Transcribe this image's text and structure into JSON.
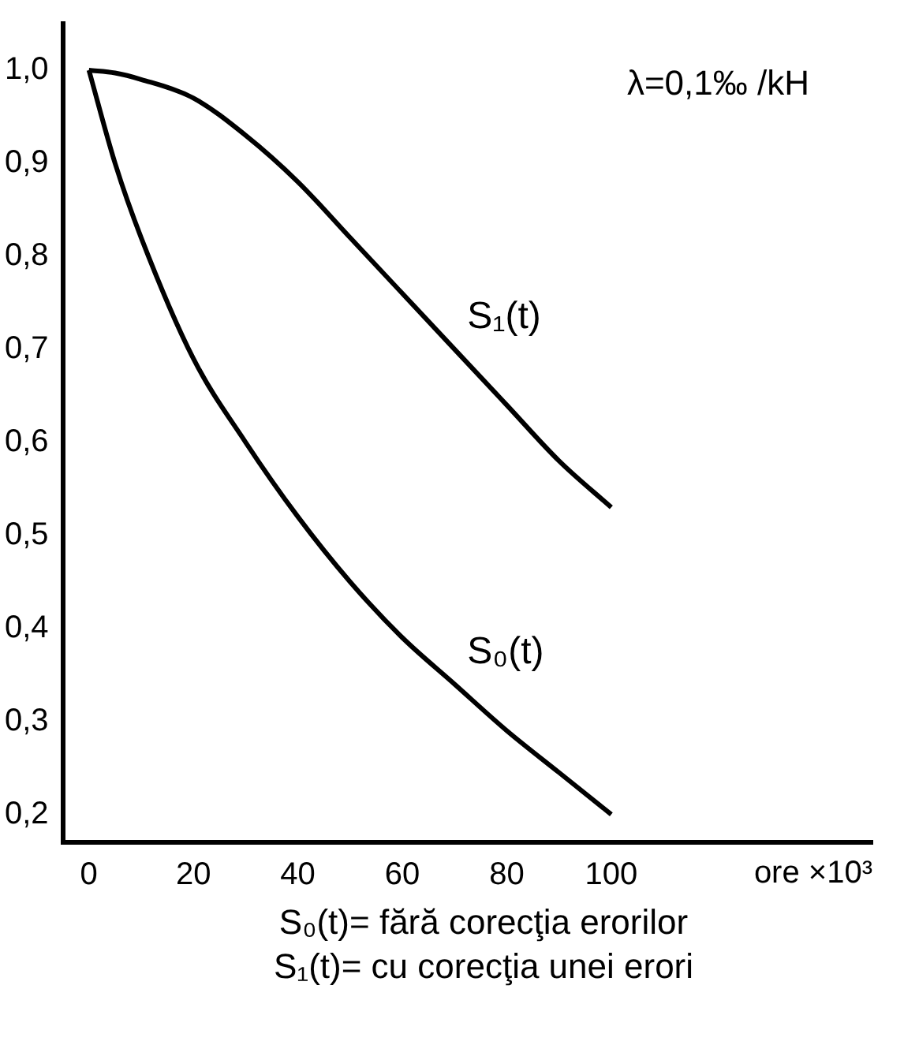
{
  "chart_data": {
    "type": "line",
    "xlabel": "ore ×10³",
    "x": [
      0,
      5,
      10,
      20,
      30,
      40,
      50,
      60,
      70,
      80,
      90,
      100
    ],
    "series": [
      {
        "name": "S₁(t)",
        "color": "#000000",
        "values": [
          1.0,
          0.997,
          0.99,
          0.97,
          0.93,
          0.88,
          0.82,
          0.76,
          0.7,
          0.64,
          0.58,
          0.53
        ]
      },
      {
        "name": "S₀(t)",
        "color": "#000000",
        "values": [
          1.0,
          0.9,
          0.82,
          0.69,
          0.6,
          0.52,
          0.45,
          0.39,
          0.34,
          0.29,
          0.245,
          0.2
        ]
      }
    ],
    "xlim": [
      -5,
      150
    ],
    "xticks": [
      0,
      20,
      40,
      60,
      80,
      100
    ],
    "ylim": [
      0.17,
      1.05
    ],
    "yticks": [
      {
        "value": 1.0,
        "label": "1,0"
      },
      {
        "value": 0.9,
        "label": "0,9"
      },
      {
        "value": 0.8,
        "label": "0,8"
      },
      {
        "value": 0.7,
        "label": "0,7"
      },
      {
        "value": 0.6,
        "label": "0,6"
      },
      {
        "value": 0.5,
        "label": "0,5"
      },
      {
        "value": 0.4,
        "label": "0,4"
      },
      {
        "value": 0.3,
        "label": "0,3"
      },
      {
        "value": 0.2,
        "label": "0,2"
      }
    ],
    "grid": false,
    "legend": false,
    "marker": "none",
    "line_style": "solid",
    "annotations": [
      "λ=0,1‰ /kH",
      "S₀(t)= fără corecţia erorilor",
      "S₁(t)= cu corecţia unei erori"
    ]
  }
}
